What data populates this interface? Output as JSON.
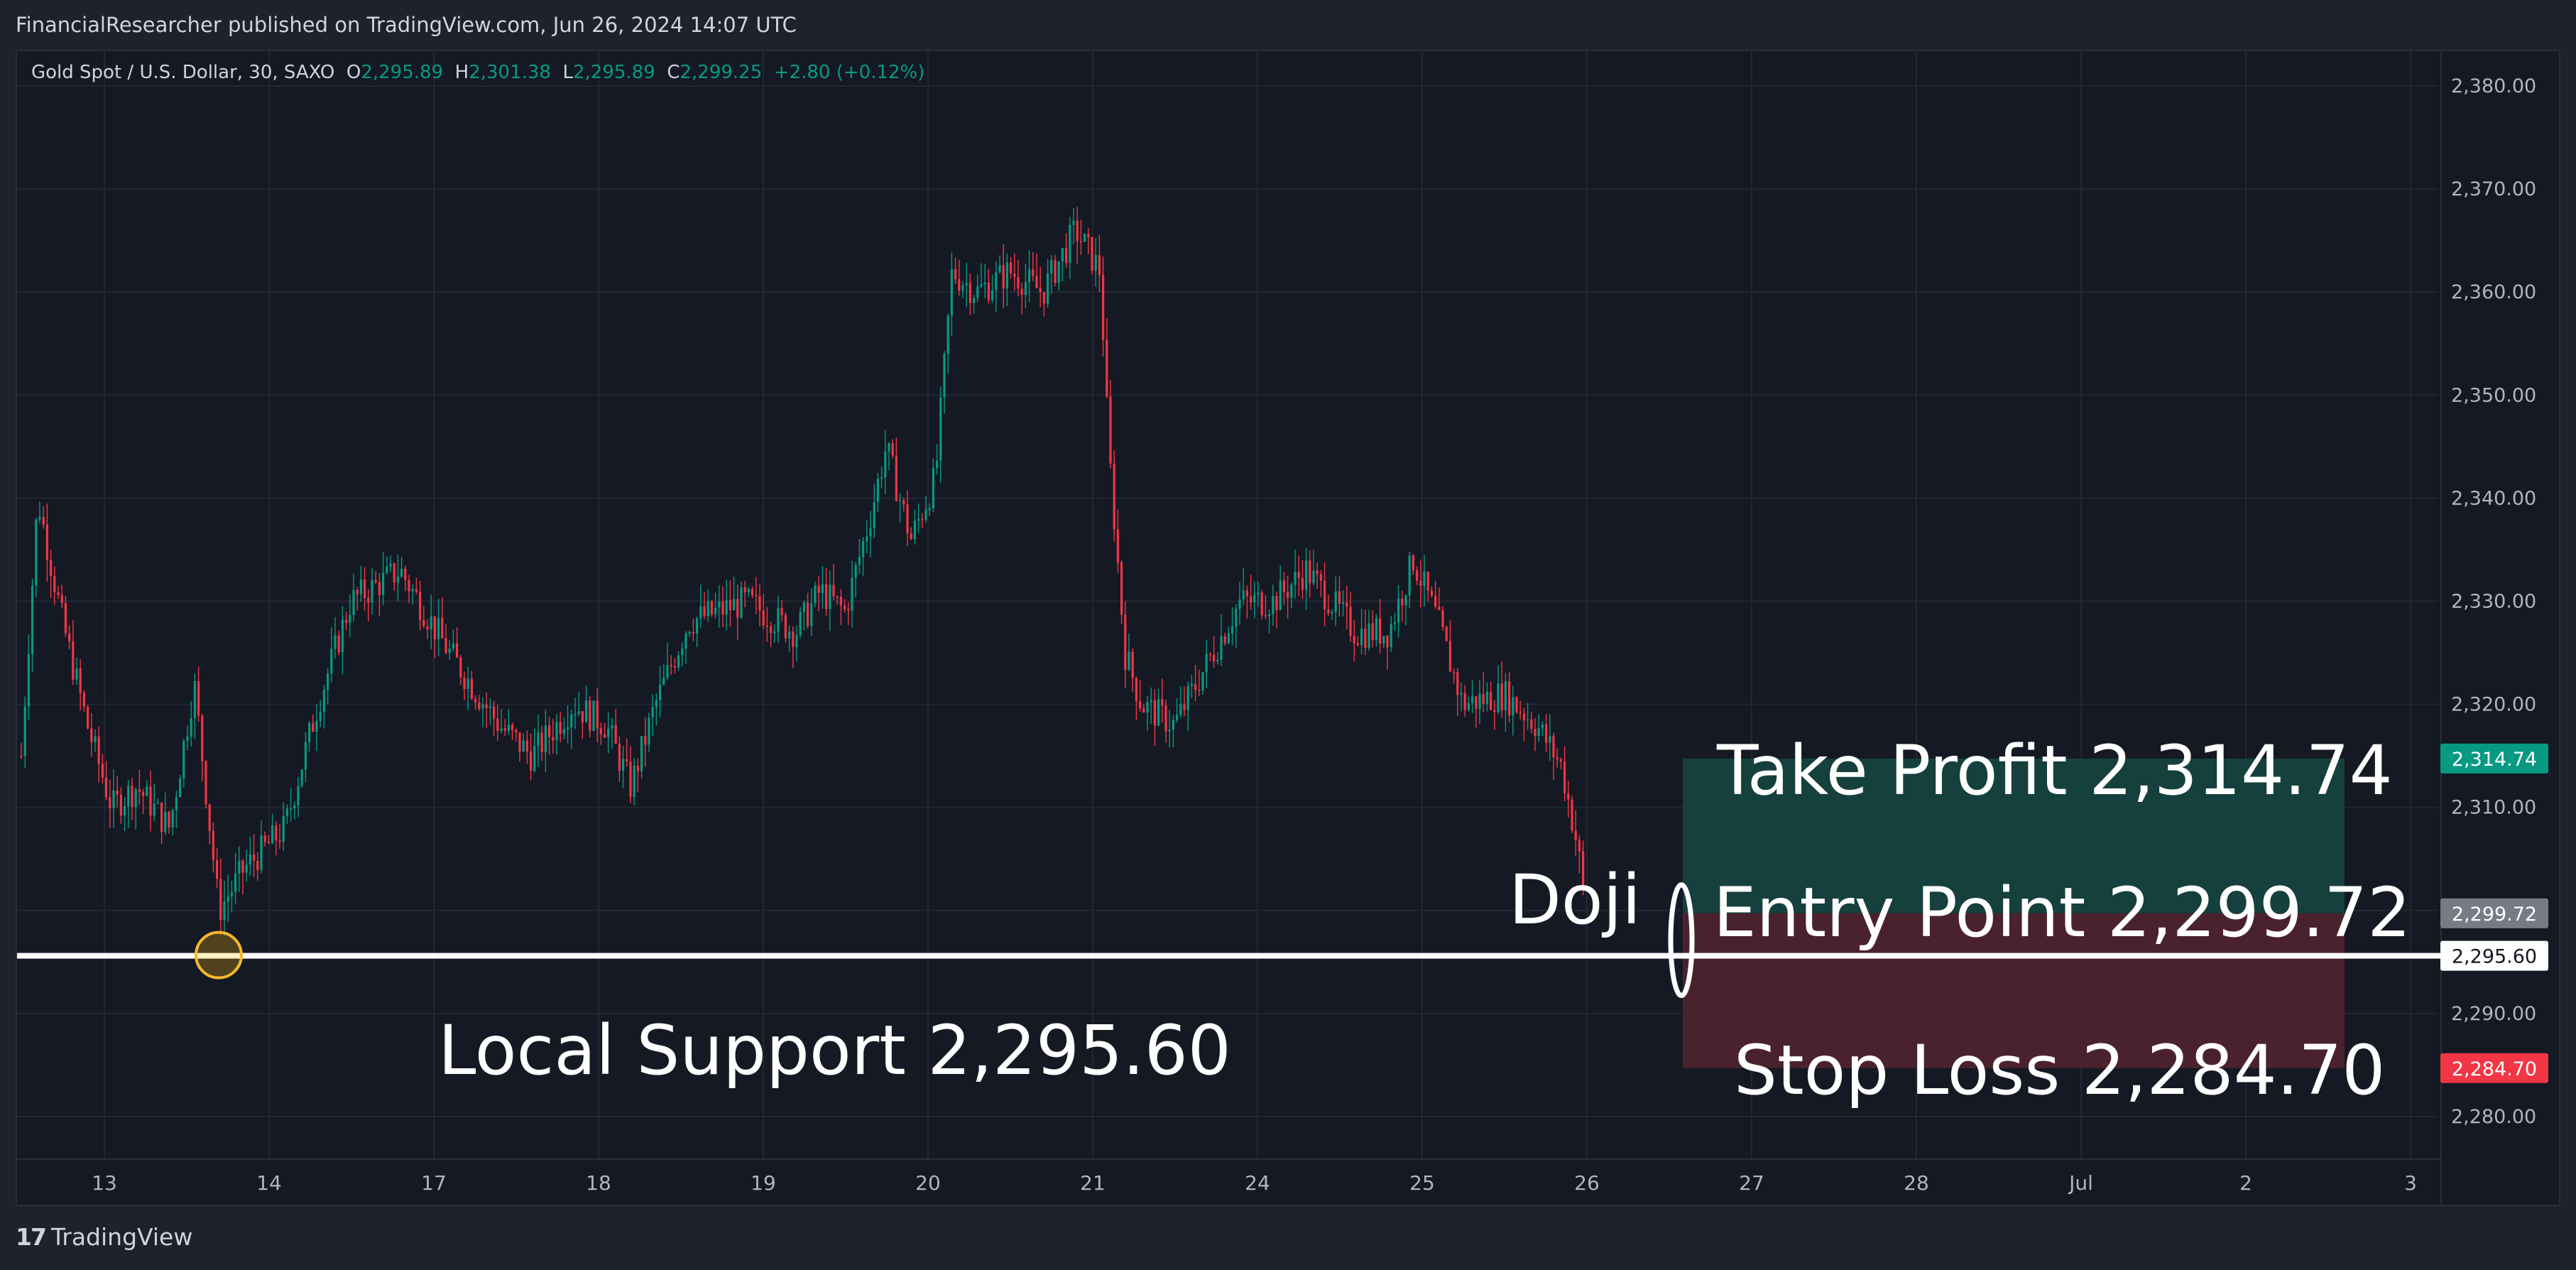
{
  "header": {
    "text": "FinancialResearcher published on TradingView.com, Jun 26, 2024 14:07 UTC"
  },
  "legend": {
    "symbol": "Gold Spot / U.S. Dollar, 30, SAXO",
    "o_label": "O",
    "o_value": "2,295.89",
    "h_label": "H",
    "h_value": "2,301.38",
    "l_label": "L",
    "l_value": "2,295.89",
    "c_label": "C",
    "c_value": "2,299.25",
    "change": "+2.80 (+0.12%)"
  },
  "footer": {
    "brand": "TradingView",
    "logo_mark": "17"
  },
  "colors": {
    "background": "#151924",
    "grid": "#232733",
    "up": "#089981",
    "down": "#f23645",
    "text": "#d1d4dc",
    "take_profit_zone": "#15403d",
    "stop_loss_zone": "#4a222d",
    "support_line": "#ffffff"
  },
  "chart_data": {
    "type": "candlestick",
    "title": "Gold Spot / U.S. Dollar, 30, SAXO",
    "timeframe": "30",
    "grid": true,
    "ylim": [
      2275,
      2383
    ],
    "y_ticks": [
      2280,
      2290,
      2300,
      2310,
      2320,
      2330,
      2340,
      2350,
      2360,
      2370,
      2380
    ],
    "y_tick_labels": [
      "2,280.00",
      "2,290.00",
      "2,300.00",
      "2,310.00",
      "2,320.00",
      "2,330.00",
      "2,340.00",
      "2,350.00",
      "2,360.00",
      "2,370.00",
      "2,380.00"
    ],
    "x_ticks": [
      "13",
      "14",
      "17",
      "18",
      "19",
      "20",
      "21",
      "24",
      "25",
      "26",
      "27",
      "28",
      "Jul",
      "2",
      "3"
    ],
    "approx_close_path": [
      [
        0.0,
        2315
      ],
      [
        0.1,
        2340
      ],
      [
        0.25,
        2328
      ],
      [
        0.4,
        2318
      ],
      [
        0.55,
        2310
      ],
      [
        0.7,
        2312
      ],
      [
        0.9,
        2308
      ],
      [
        1.05,
        2322
      ],
      [
        1.2,
        2300
      ],
      [
        1.35,
        2304
      ],
      [
        1.6,
        2308
      ],
      [
        1.8,
        2320
      ],
      [
        2.0,
        2330
      ],
      [
        2.3,
        2333
      ],
      [
        2.6,
        2325
      ],
      [
        2.9,
        2318
      ],
      [
        3.1,
        2315
      ],
      [
        3.35,
        2320
      ],
      [
        3.55,
        2318
      ],
      [
        3.7,
        2312
      ],
      [
        3.85,
        2320
      ],
      [
        4.05,
        2328
      ],
      [
        4.4,
        2330
      ],
      [
        4.7,
        2327
      ],
      [
        4.85,
        2331
      ],
      [
        5.0,
        2329
      ],
      [
        5.15,
        2338
      ],
      [
        5.25,
        2345
      ],
      [
        5.4,
        2336
      ],
      [
        5.55,
        2342
      ],
      [
        5.65,
        2362
      ],
      [
        5.8,
        2360
      ],
      [
        6.0,
        2362
      ],
      [
        6.2,
        2360
      ],
      [
        6.4,
        2366
      ],
      [
        6.55,
        2362
      ],
      [
        6.6,
        2345
      ],
      [
        6.7,
        2325
      ],
      [
        6.8,
        2320
      ],
      [
        7.0,
        2318
      ],
      [
        7.2,
        2324
      ],
      [
        7.4,
        2330
      ],
      [
        7.6,
        2330
      ],
      [
        7.8,
        2333
      ],
      [
        7.95,
        2330
      ],
      [
        8.1,
        2327
      ],
      [
        8.3,
        2327
      ],
      [
        8.45,
        2334
      ],
      [
        8.6,
        2328
      ],
      [
        8.75,
        2320
      ],
      [
        9.0,
        2321
      ],
      [
        9.2,
        2318
      ],
      [
        9.35,
        2314
      ],
      [
        9.45,
        2306
      ],
      [
        9.5,
        2299.25
      ]
    ],
    "ohlc_last": {
      "open": 2295.89,
      "high": 2301.38,
      "low": 2295.89,
      "close": 2299.25,
      "change": 2.8,
      "change_pct": 0.12
    },
    "annotations": {
      "take_profit": {
        "label": "Take Profit 2,314.74",
        "price": 2314.74,
        "badge": "2,314.74"
      },
      "entry": {
        "label": "Entry Point 2,299.72",
        "price": 2299.72,
        "badge": "2,299.72"
      },
      "stop_loss": {
        "label": "Stop Loss 2,284.70",
        "price": 2284.7,
        "badge": "2,284.70"
      },
      "support": {
        "label": "Local Support 2,295.60",
        "price": 2295.6,
        "badge": "2,295.60"
      },
      "doji": {
        "label": "Doji"
      }
    }
  }
}
